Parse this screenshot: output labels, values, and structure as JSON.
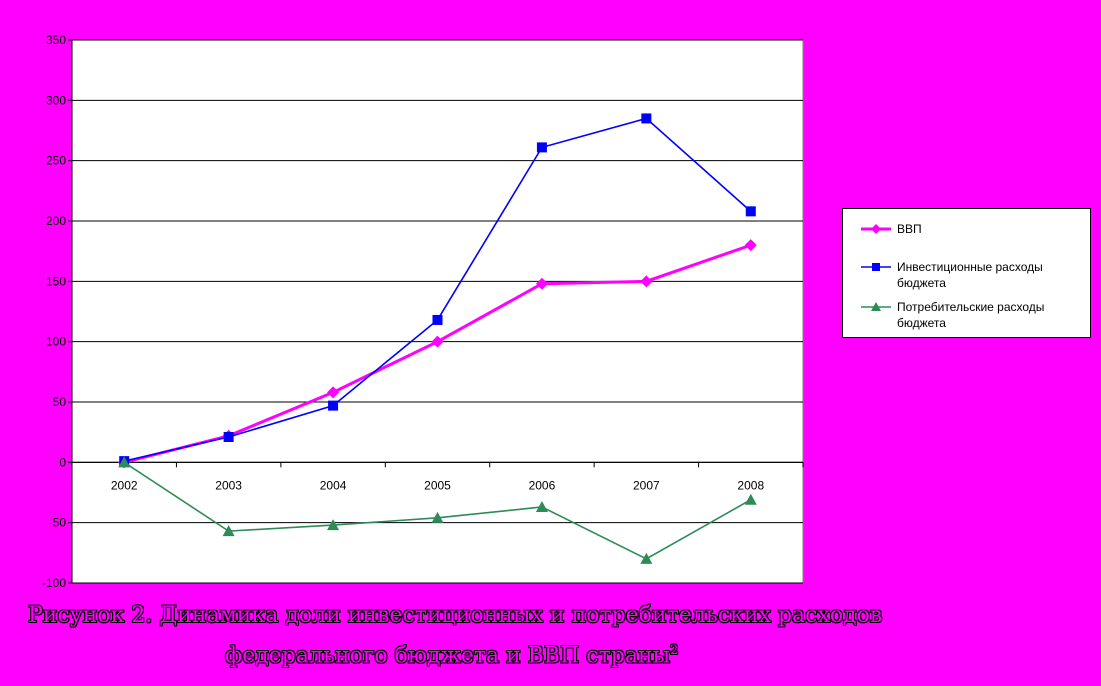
{
  "caption": {
    "line1": "Рисунок 2. Динамика доли инвестиционных и потребительских расходов",
    "line2": "федерального бюджета  и ВВП страны",
    "footnote": "2"
  },
  "colors": {
    "background": "#ff00ff",
    "plot_area": "#ffffff",
    "gridline": "#000000",
    "vvp": "#ff00ff",
    "invest": "#0000ff",
    "consumer": "#2e8b57"
  },
  "chart_data": {
    "type": "line",
    "title": "",
    "xlabel": "",
    "ylabel": "",
    "categories": [
      "2002",
      "2003",
      "2004",
      "2005",
      "2006",
      "2007",
      "2008"
    ],
    "ylim": [
      -100,
      350
    ],
    "yticks": [
      350,
      300,
      250,
      200,
      150,
      100,
      50,
      0,
      -50,
      -100
    ],
    "grid": true,
    "legend_position": "right",
    "series": [
      {
        "name": "ВВП",
        "marker": "diamond",
        "color": "#ff00ff",
        "values": [
          0,
          22,
          58,
          100,
          148,
          150,
          180
        ]
      },
      {
        "name": "Инвестиционные расходы бюджета",
        "marker": "square",
        "color": "#0000ff",
        "values": [
          1,
          21,
          47,
          118,
          261,
          285,
          208
        ]
      },
      {
        "name": "Потребительские расходы бюджета",
        "marker": "triangle",
        "color": "#2e8b57",
        "values": [
          0,
          -57,
          -52,
          -46,
          -37,
          -80,
          -31
        ]
      }
    ]
  }
}
